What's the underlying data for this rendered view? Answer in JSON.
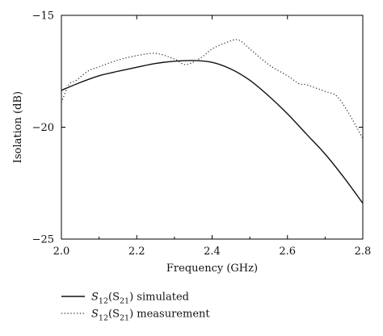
{
  "chart_data": {
    "type": "line",
    "title": "",
    "xlabel": "Frequency (GHz)",
    "ylabel": "Isolation (dB)",
    "xlim": [
      2.0,
      2.8
    ],
    "ylim": [
      -25,
      -15
    ],
    "x_ticks": [
      "2.0",
      "2.2",
      "2.4",
      "2.6",
      "2.8"
    ],
    "y_ticks": [
      "−15",
      "−20",
      "−25"
    ],
    "legend_position": "bottom-left",
    "grid": false,
    "series": [
      {
        "name": "S12(S21) simulated",
        "style": "solid",
        "color": "#111111",
        "x": [
          2.0,
          2.05,
          2.1,
          2.15,
          2.2,
          2.25,
          2.3,
          2.35,
          2.4,
          2.45,
          2.5,
          2.55,
          2.6,
          2.65,
          2.7,
          2.75,
          2.8
        ],
        "y": [
          -18.35,
          -18.0,
          -17.7,
          -17.5,
          -17.32,
          -17.15,
          -17.05,
          -17.02,
          -17.1,
          -17.4,
          -17.9,
          -18.6,
          -19.4,
          -20.3,
          -21.2,
          -22.25,
          -23.4
        ]
      },
      {
        "name": "S12(S21) measurement",
        "style": "dotted",
        "color": "#222222",
        "x": [
          2.0,
          2.02,
          2.04,
          2.07,
          2.1,
          2.15,
          2.2,
          2.25,
          2.3,
          2.33,
          2.37,
          2.4,
          2.44,
          2.47,
          2.5,
          2.55,
          2.6,
          2.63,
          2.65,
          2.7,
          2.73,
          2.76,
          2.8
        ],
        "y": [
          -18.9,
          -18.1,
          -17.9,
          -17.5,
          -17.3,
          -17.0,
          -16.8,
          -16.7,
          -16.95,
          -17.2,
          -16.9,
          -16.5,
          -16.2,
          -16.1,
          -16.5,
          -17.2,
          -17.7,
          -18.05,
          -18.1,
          -18.4,
          -18.6,
          -19.3,
          -20.5
        ]
      }
    ],
    "legend": {
      "entries": [
        {
          "main": "S",
          "sub1": "12",
          "mid": "(S",
          "sub2": "21",
          "tail": ") simulated"
        },
        {
          "main": "S",
          "sub1": "12",
          "mid": "(S",
          "sub2": "21",
          "tail": ") measurement"
        }
      ]
    }
  }
}
